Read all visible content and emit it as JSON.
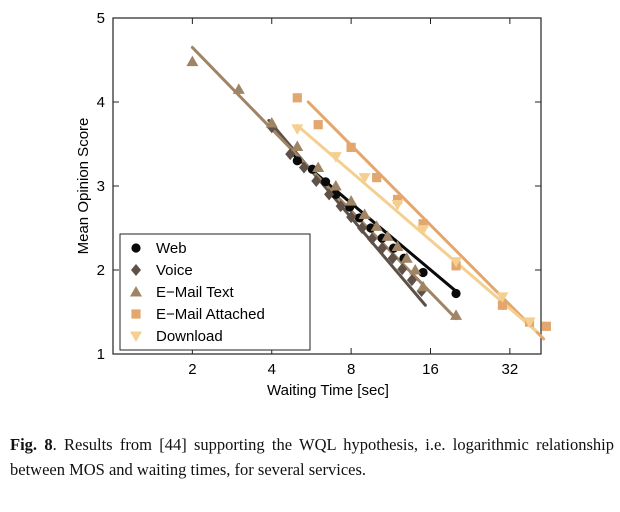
{
  "caption": {
    "label": "Fig. 8",
    "text": ". Results from [44] supporting the WQL hypothesis, i.e. logarithmic relationship between MOS and waiting times, for several services."
  },
  "chart_data": {
    "type": "scatter",
    "title": "",
    "xlabel": "Waiting Time [sec]",
    "ylabel": "Mean Opinion Score",
    "xscale": "log2",
    "xlim": [
      1,
      42
    ],
    "ylim": [
      1,
      5
    ],
    "xticks": [
      2,
      4,
      8,
      16,
      32
    ],
    "xtick_labels": [
      "2",
      "4",
      "8",
      "16",
      "32"
    ],
    "yticks": [
      1,
      2,
      3,
      4,
      5
    ],
    "ytick_labels": [
      "1",
      "2",
      "3",
      "4",
      "5"
    ],
    "legend_position": "bottom-left",
    "series": [
      {
        "name": "Web",
        "marker": "circle",
        "color": "#0a0a0a",
        "x": [
          5.0,
          5.7,
          6.4,
          7.0,
          7.9,
          8.6,
          9.5,
          10.5,
          11.6,
          12.7,
          15.0,
          20.0
        ],
        "y": [
          3.3,
          3.2,
          3.05,
          2.9,
          2.75,
          2.62,
          2.5,
          2.38,
          2.26,
          2.14,
          1.97,
          1.72
        ],
        "fit": {
          "x": [
            4.8,
            20.3
          ],
          "y": [
            3.38,
            1.73
          ]
        }
      },
      {
        "name": "Voice",
        "marker": "diamond",
        "color": "#5e5248",
        "x": [
          4.0,
          4.7,
          5.3,
          5.9,
          6.6,
          7.3,
          8.0,
          8.8,
          9.6,
          10.5,
          11.5,
          12.5,
          13.6,
          14.8
        ],
        "y": [
          3.7,
          3.38,
          3.22,
          3.06,
          2.9,
          2.76,
          2.63,
          2.5,
          2.37,
          2.26,
          2.14,
          2.01,
          1.88,
          1.75
        ],
        "fit": {
          "x": [
            3.9,
            15.3
          ],
          "y": [
            3.78,
            1.58
          ]
        }
      },
      {
        "name": "E−Mail Text",
        "marker": "triangle-up",
        "color": "#a08466",
        "x": [
          2.0,
          3.0,
          4.0,
          5.0,
          6.0,
          7.0,
          8.0,
          9.0,
          10.0,
          11.0,
          12.0,
          13.0,
          14.0,
          15.0,
          20.0
        ],
        "y": [
          4.48,
          4.15,
          3.75,
          3.47,
          3.22,
          3.0,
          2.82,
          2.66,
          2.52,
          2.4,
          2.28,
          2.14,
          2.0,
          1.8,
          1.46
        ],
        "fit": {
          "x": [
            2.0,
            20.0
          ],
          "y": [
            4.65,
            1.42
          ]
        }
      },
      {
        "name": "E−Mail Attached",
        "marker": "square",
        "color": "#e3a66d",
        "x": [
          5.0,
          6.0,
          8.0,
          10.0,
          12.0,
          15.0,
          20.0,
          30.0,
          38.0,
          44.0
        ],
        "y": [
          4.05,
          3.73,
          3.46,
          3.1,
          2.84,
          2.55,
          2.05,
          1.58,
          1.38,
          1.33
        ],
        "fit": {
          "x": [
            5.5,
            43.0
          ],
          "y": [
            4.0,
            1.18
          ]
        }
      },
      {
        "name": "Download",
        "marker": "triangle-down",
        "color": "#f4cf8f",
        "x": [
          5.0,
          7.0,
          9.0,
          12.0,
          15.0,
          20.0,
          30.0,
          38.0
        ],
        "y": [
          3.68,
          3.35,
          3.1,
          2.78,
          2.48,
          2.1,
          1.68,
          1.38
        ],
        "fit": {
          "x": [
            5.0,
            40.0
          ],
          "y": [
            3.72,
            1.28
          ]
        }
      }
    ]
  }
}
